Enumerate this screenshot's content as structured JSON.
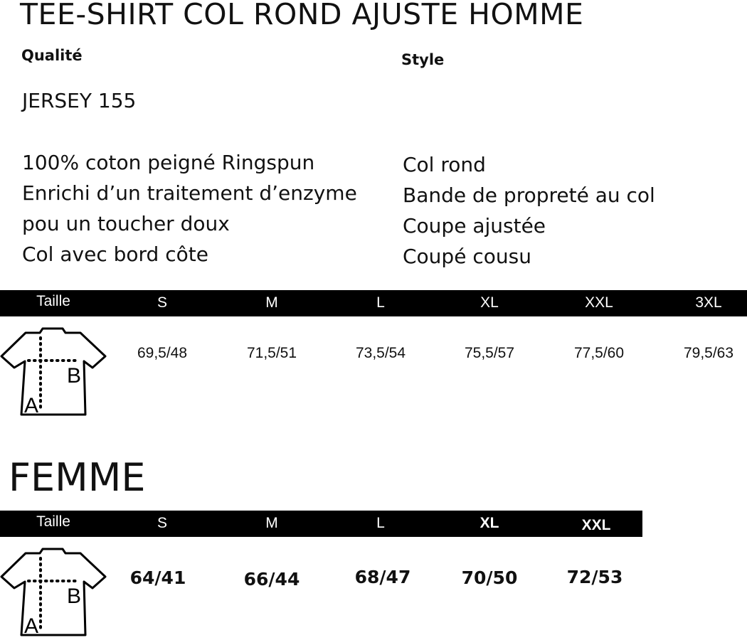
{
  "title": "TEE-SHIRT COL ROND AJUSTE HOMME",
  "quality": {
    "heading": "Qualité",
    "name": "JERSEY 155",
    "lines": [
      "100% coton peigné Ringspun",
      "Enrichi d’un traitement d’enzyme",
      "pou un toucher doux",
      "Col avec bord côte"
    ]
  },
  "style": {
    "heading": "Style",
    "lines": [
      "Col rond",
      "Bande de propreté au col",
      "Coupe ajustée",
      "Coupé cousu"
    ]
  },
  "homme_table": {
    "header": [
      "Taille",
      "S",
      "M",
      "L",
      "XL",
      "XXL",
      "3XL"
    ],
    "values": [
      "69,5/48",
      "71,5/51",
      "73,5/54",
      "75,5/57",
      "77,5/60",
      "79,5/63"
    ]
  },
  "femme_title": "FEMME",
  "femme_table": {
    "header": [
      "Taille",
      "S",
      "M",
      "L",
      "XL",
      "XXL"
    ],
    "values": [
      "64/41",
      "66/44",
      "68/47",
      "70/50",
      "72/53"
    ]
  },
  "diagram_labels": {
    "a": "A",
    "b": "B"
  }
}
